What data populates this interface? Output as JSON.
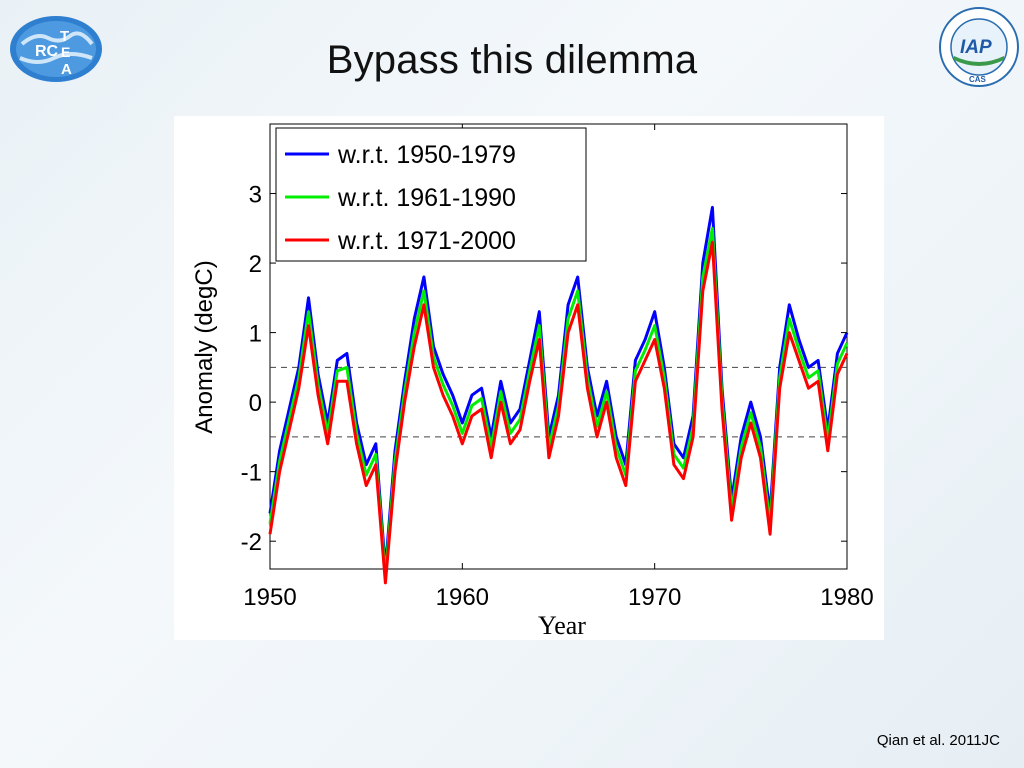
{
  "slide": {
    "title": "Bypass this dilemma",
    "citation": "Qian et al. 2011JC"
  },
  "logos": {
    "left": {
      "text_rc": "RC",
      "text_t": "T",
      "text_e": "E",
      "text_a": "A"
    },
    "right": {
      "text": "IAP",
      "bottom_text": "CAS"
    }
  },
  "colors": {
    "series1": "#0000ff",
    "series2": "#00ee00",
    "series3": "#ff0000",
    "dashed": "#444444"
  },
  "chart_data": {
    "type": "line",
    "title": "",
    "xlabel": "Year",
    "ylabel": "Anomaly (degC)",
    "xlim": [
      1950,
      1980
    ],
    "ylim": [
      -2.4,
      4.0
    ],
    "xticks": [
      1950,
      1960,
      1970,
      1980
    ],
    "yticks": [
      -2,
      -1,
      0,
      1,
      2,
      3
    ],
    "xtick_labels": [
      "1950",
      "1960",
      "1970",
      "1980"
    ],
    "ytick_labels": [
      "-2",
      "-1",
      "0",
      "1",
      "2",
      "3"
    ],
    "reference_lines": [
      0.5,
      -0.5
    ],
    "legend_position": "top-left",
    "grid": false,
    "x": [
      1950.0,
      1950.5,
      1951.0,
      1951.5,
      1952.0,
      1952.5,
      1953.0,
      1953.5,
      1954.0,
      1954.5,
      1955.0,
      1955.5,
      1956.0,
      1956.5,
      1957.0,
      1957.5,
      1958.0,
      1958.5,
      1959.0,
      1959.5,
      1960.0,
      1960.5,
      1961.0,
      1961.5,
      1962.0,
      1962.5,
      1963.0,
      1963.5,
      1964.0,
      1964.5,
      1965.0,
      1965.5,
      1966.0,
      1966.5,
      1967.0,
      1967.5,
      1968.0,
      1968.5,
      1969.0,
      1969.5,
      1970.0,
      1970.5,
      1971.0,
      1971.5,
      1972.0,
      1972.5,
      1973.0,
      1973.5,
      1974.0,
      1974.5,
      1975.0,
      1975.5,
      1976.0,
      1976.5,
      1977.0,
      1977.5,
      1978.0,
      1978.5,
      1979.0,
      1979.5,
      1980.0
    ],
    "series": [
      {
        "name": "w.r.t. 1950-1979",
        "color": "#0000ff",
        "values": [
          -1.6,
          -0.7,
          -0.1,
          0.5,
          1.5,
          0.4,
          -0.3,
          0.6,
          0.7,
          -0.3,
          -0.9,
          -0.6,
          -2.4,
          -0.7,
          0.3,
          1.2,
          1.8,
          0.8,
          0.4,
          0.1,
          -0.3,
          0.1,
          0.2,
          -0.5,
          0.3,
          -0.3,
          -0.1,
          0.6,
          1.3,
          -0.5,
          0.1,
          1.4,
          1.8,
          0.5,
          -0.2,
          0.3,
          -0.5,
          -0.9,
          0.6,
          0.9,
          1.3,
          0.5,
          -0.6,
          -0.8,
          -0.2,
          2.0,
          2.8,
          0.2,
          -1.4,
          -0.5,
          0.0,
          -0.5,
          -1.6,
          0.5,
          1.4,
          0.9,
          0.5,
          0.6,
          -0.4,
          0.7,
          1.0
        ]
      },
      {
        "name": "w.r.t. 1961-1990",
        "color": "#00ee00",
        "values": [
          -1.75,
          -0.85,
          -0.25,
          0.35,
          1.3,
          0.25,
          -0.45,
          0.45,
          0.5,
          -0.45,
          -1.05,
          -0.75,
          -2.5,
          -0.85,
          0.15,
          1.0,
          1.6,
          0.65,
          0.25,
          -0.05,
          -0.45,
          -0.05,
          0.05,
          -0.65,
          0.15,
          -0.45,
          -0.25,
          0.45,
          1.1,
          -0.65,
          -0.05,
          1.2,
          1.6,
          0.35,
          -0.35,
          0.15,
          -0.65,
          -1.05,
          0.45,
          0.75,
          1.1,
          0.35,
          -0.75,
          -0.95,
          -0.35,
          1.8,
          2.5,
          0.05,
          -1.55,
          -0.65,
          -0.15,
          -0.65,
          -1.75,
          0.35,
          1.2,
          0.75,
          0.35,
          0.45,
          -0.55,
          0.55,
          0.85
        ]
      },
      {
        "name": "w.r.t. 1971-2000",
        "color": "#ff0000",
        "values": [
          -1.9,
          -1.0,
          -0.4,
          0.2,
          1.1,
          0.1,
          -0.6,
          0.3,
          0.3,
          -0.6,
          -1.2,
          -0.9,
          -2.6,
          -1.0,
          0.0,
          0.8,
          1.4,
          0.5,
          0.1,
          -0.2,
          -0.6,
          -0.2,
          -0.1,
          -0.8,
          0.0,
          -0.6,
          -0.4,
          0.3,
          0.9,
          -0.8,
          -0.2,
          1.0,
          1.4,
          0.2,
          -0.5,
          0.0,
          -0.8,
          -1.2,
          0.3,
          0.6,
          0.9,
          0.2,
          -0.9,
          -1.1,
          -0.5,
          1.6,
          2.3,
          -0.1,
          -1.7,
          -0.8,
          -0.3,
          -0.8,
          -1.9,
          0.2,
          1.0,
          0.6,
          0.2,
          0.3,
          -0.7,
          0.4,
          0.7
        ]
      }
    ]
  }
}
